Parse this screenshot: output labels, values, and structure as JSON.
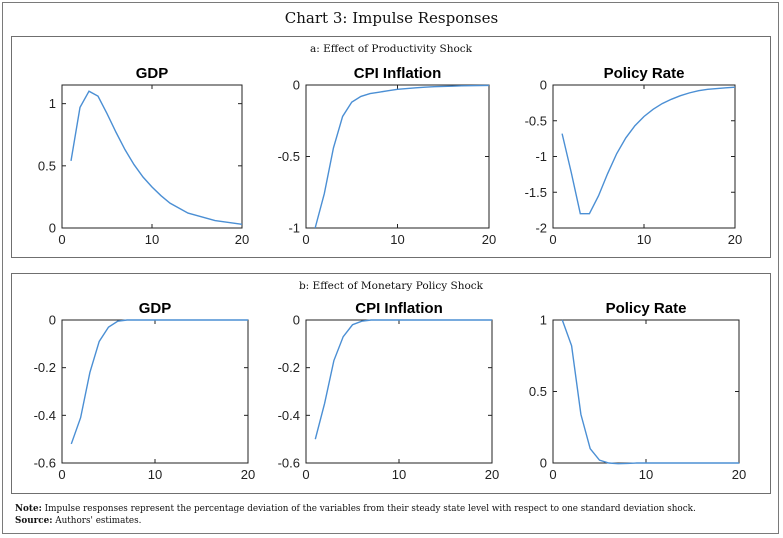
{
  "title": "Chart 3: Impulse Responses",
  "panels": [
    {
      "title": "a: Effect of Productivity Shock"
    },
    {
      "title": "b: Effect of Monetary Policy Shock"
    }
  ],
  "note": {
    "note_label": "Note:",
    "note_text": "Impulse responses represent the percentage deviation of the variables from their steady state level with respect to one standard deviation shock.",
    "source_label": "Source:",
    "source_text": "Authors' estimates."
  },
  "colors": {
    "series": "#4b8fd4"
  },
  "chart_data": [
    {
      "id": "a-gdp",
      "panel": "a",
      "type": "line",
      "title": "GDP",
      "xlim": [
        0,
        20
      ],
      "ylim": [
        0,
        1.15
      ],
      "xticks": [
        0,
        10,
        20
      ],
      "yticks": [
        0,
        0.5,
        1
      ],
      "ytick_labels": [
        "0",
        "0.5",
        "1"
      ],
      "xtick_labels": [
        "0",
        "10",
        "20"
      ],
      "x": [
        1,
        2,
        3,
        4,
        5,
        6,
        7,
        8,
        9,
        10,
        11,
        12,
        13,
        14,
        15,
        16,
        17,
        18,
        19,
        20
      ],
      "y": [
        0.54,
        0.97,
        1.1,
        1.06,
        0.92,
        0.77,
        0.63,
        0.51,
        0.41,
        0.33,
        0.26,
        0.2,
        0.16,
        0.12,
        0.1,
        0.08,
        0.06,
        0.05,
        0.04,
        0.03
      ]
    },
    {
      "id": "a-cpi",
      "panel": "a",
      "type": "line",
      "title": "CPI Inflation",
      "xlim": [
        0,
        20
      ],
      "ylim": [
        -1,
        0
      ],
      "xticks": [
        0,
        10,
        20
      ],
      "yticks": [
        -1,
        -0.5,
        0
      ],
      "ytick_labels": [
        "-1",
        "-0.5",
        "0"
      ],
      "xtick_labels": [
        "0",
        "10",
        "20"
      ],
      "x": [
        1,
        2,
        3,
        4,
        5,
        6,
        7,
        8,
        9,
        10,
        11,
        12,
        13,
        14,
        15,
        16,
        17,
        18,
        19,
        20
      ],
      "y": [
        -1.0,
        -0.76,
        -0.44,
        -0.22,
        -0.12,
        -0.08,
        -0.06,
        -0.05,
        -0.04,
        -0.03,
        -0.025,
        -0.02,
        -0.015,
        -0.012,
        -0.01,
        -0.008,
        -0.006,
        -0.005,
        -0.004,
        -0.003
      ]
    },
    {
      "id": "a-policy",
      "panel": "a",
      "type": "line",
      "title": "Policy Rate",
      "xlim": [
        0,
        20
      ],
      "ylim": [
        -2,
        0
      ],
      "xticks": [
        0,
        10,
        20
      ],
      "yticks": [
        -2,
        -1.5,
        -1,
        -0.5,
        0
      ],
      "ytick_labels": [
        "-2",
        "-1.5",
        "-1",
        "-0.5",
        "0"
      ],
      "xtick_labels": [
        "0",
        "10",
        "20"
      ],
      "x": [
        1,
        2,
        3,
        4,
        5,
        6,
        7,
        8,
        9,
        10,
        11,
        12,
        13,
        14,
        15,
        16,
        17,
        18,
        19,
        20
      ],
      "y": [
        -0.68,
        -1.22,
        -1.8,
        -1.8,
        -1.55,
        -1.24,
        -0.96,
        -0.74,
        -0.57,
        -0.44,
        -0.34,
        -0.26,
        -0.2,
        -0.15,
        -0.11,
        -0.08,
        -0.06,
        -0.05,
        -0.04,
        -0.03
      ]
    },
    {
      "id": "b-gdp",
      "panel": "b",
      "type": "line",
      "title": "GDP",
      "xlim": [
        0,
        20
      ],
      "ylim": [
        -0.6,
        0
      ],
      "xticks": [
        0,
        10,
        20
      ],
      "yticks": [
        -0.6,
        -0.4,
        -0.2,
        0
      ],
      "ytick_labels": [
        "-0.6",
        "-0.4",
        "-0.2",
        "0"
      ],
      "xtick_labels": [
        "0",
        "10",
        "20"
      ],
      "x": [
        1,
        2,
        3,
        4,
        5,
        6,
        7,
        8,
        9,
        10,
        11,
        12,
        13,
        14,
        15,
        16,
        17,
        18,
        19,
        20
      ],
      "y": [
        -0.52,
        -0.41,
        -0.22,
        -0.09,
        -0.03,
        -0.005,
        0.0,
        0.0,
        0.0,
        0.0,
        0.0,
        0.0,
        0.0,
        0.0,
        0.0,
        0.0,
        0.0,
        0.0,
        0.0,
        0.0
      ]
    },
    {
      "id": "b-cpi",
      "panel": "b",
      "type": "line",
      "title": "CPI Inflation",
      "xlim": [
        0,
        20
      ],
      "ylim": [
        -0.6,
        0
      ],
      "xticks": [
        0,
        10,
        20
      ],
      "yticks": [
        -0.6,
        -0.4,
        -0.2,
        0
      ],
      "ytick_labels": [
        "-0.6",
        "-0.4",
        "-0.2",
        "0"
      ],
      "xtick_labels": [
        "0",
        "10",
        "20"
      ],
      "x": [
        1,
        2,
        3,
        4,
        5,
        6,
        7,
        8,
        9,
        10,
        11,
        12,
        13,
        14,
        15,
        16,
        17,
        18,
        19,
        20
      ],
      "y": [
        -0.5,
        -0.35,
        -0.17,
        -0.07,
        -0.02,
        -0.005,
        0.0,
        0.0,
        0.0,
        0.0,
        0.0,
        0.0,
        0.0,
        0.0,
        0.0,
        0.0,
        0.0,
        0.0,
        0.0,
        0.0
      ]
    },
    {
      "id": "b-policy",
      "panel": "b",
      "type": "line",
      "title": "Policy Rate",
      "xlim": [
        0,
        20
      ],
      "ylim": [
        0,
        1
      ],
      "xticks": [
        0,
        10,
        20
      ],
      "yticks": [
        0,
        0.5,
        1
      ],
      "ytick_labels": [
        "0",
        "0.5",
        "1"
      ],
      "xtick_labels": [
        "0",
        "10",
        "20"
      ],
      "x": [
        1,
        2,
        3,
        4,
        5,
        6,
        7,
        8,
        9,
        10,
        11,
        12,
        13,
        14,
        15,
        16,
        17,
        18,
        19,
        20
      ],
      "y": [
        1.0,
        0.82,
        0.34,
        0.1,
        0.02,
        0.0,
        -0.005,
        -0.003,
        0.0,
        0.0,
        0.0,
        0.0,
        0.0,
        0.0,
        0.0,
        0.0,
        0.0,
        0.0,
        0.0,
        0.0
      ]
    }
  ]
}
